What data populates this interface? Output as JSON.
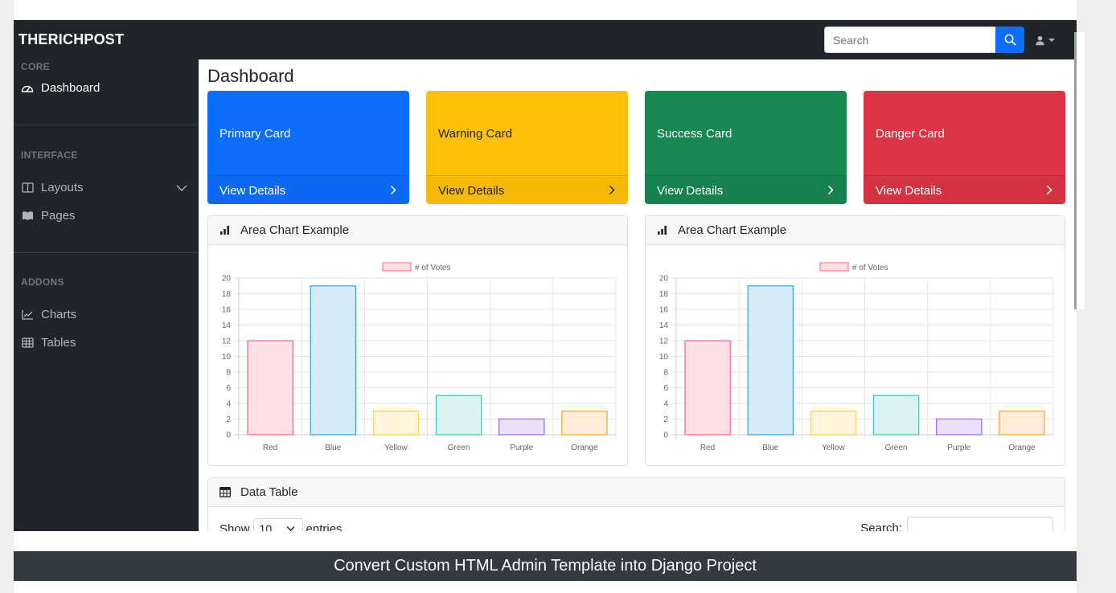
{
  "navbar": {
    "brand": "THERICHPOST",
    "search_placeholder": "Search"
  },
  "sidebar": {
    "sections": [
      {
        "heading": "CORE",
        "items": [
          {
            "label": "Dashboard",
            "icon": "tachometer-icon",
            "active": true
          }
        ]
      },
      {
        "heading": "INTERFACE",
        "items": [
          {
            "label": "Layouts",
            "icon": "columns-icon",
            "has_caret": true
          },
          {
            "label": "Pages",
            "icon": "book-icon"
          }
        ]
      },
      {
        "heading": "ADDONS",
        "items": [
          {
            "label": "Charts",
            "icon": "chart-line-icon"
          },
          {
            "label": "Tables",
            "icon": "table-icon"
          }
        ]
      }
    ]
  },
  "main": {
    "title": "Dashboard",
    "cards": [
      {
        "title": "Primary Card",
        "link": "View Details",
        "color": "#0d6efd",
        "text_color": "#ffffff"
      },
      {
        "title": "Warning Card",
        "link": "View Details",
        "color": "#ffc107",
        "text_color": "#212529"
      },
      {
        "title": "Success Card",
        "link": "View Details",
        "color": "#198754",
        "text_color": "#ffffff"
      },
      {
        "title": "Danger Card",
        "link": "View Details",
        "color": "#dc3545",
        "text_color": "#ffffff"
      }
    ],
    "chart_panels": [
      {
        "header": "Area Chart Example"
      },
      {
        "header": "Area Chart Example"
      }
    ],
    "data_table": {
      "header": "Data Table",
      "show_label": "Show",
      "entries_value": "10",
      "entries_label": "entries",
      "search_label": "Search:"
    }
  },
  "chart_data": [
    {
      "type": "bar",
      "categories": [
        "Red",
        "Blue",
        "Yellow",
        "Green",
        "Purple",
        "Orange"
      ],
      "series": [
        {
          "name": "# of Votes",
          "values": [
            12,
            19,
            3,
            5,
            2,
            3
          ]
        }
      ],
      "bar_fill_colors": [
        "#ffe0e6",
        "#d7ecfb",
        "#fff5dd",
        "#dbf2f2",
        "#ebe0ff",
        "#ffecd9"
      ],
      "bar_border_colors": [
        "#ff6384",
        "#36a2eb",
        "#ffce56",
        "#4bc0c0",
        "#9966ff",
        "#ff9f40"
      ],
      "yticks": [
        0,
        2,
        4,
        6,
        8,
        10,
        12,
        14,
        16,
        18,
        20
      ],
      "ylim": [
        0,
        20
      ],
      "grid": true,
      "legend": "top"
    },
    {
      "type": "bar",
      "categories": [
        "Red",
        "Blue",
        "Yellow",
        "Green",
        "Purple",
        "Orange"
      ],
      "series": [
        {
          "name": "# of Votes",
          "values": [
            12,
            19,
            3,
            5,
            2,
            3
          ]
        }
      ],
      "bar_fill_colors": [
        "#ffe0e6",
        "#d7ecfb",
        "#fff5dd",
        "#dbf2f2",
        "#ebe0ff",
        "#ffecd9"
      ],
      "bar_border_colors": [
        "#ff6384",
        "#36a2eb",
        "#ffce56",
        "#4bc0c0",
        "#9966ff",
        "#ff9f40"
      ],
      "yticks": [
        0,
        2,
        4,
        6,
        8,
        10,
        12,
        14,
        16,
        18,
        20
      ],
      "ylim": [
        0,
        20
      ],
      "grid": true,
      "legend": "top"
    }
  ],
  "caption": "Convert Custom HTML Admin Template into Django Project"
}
